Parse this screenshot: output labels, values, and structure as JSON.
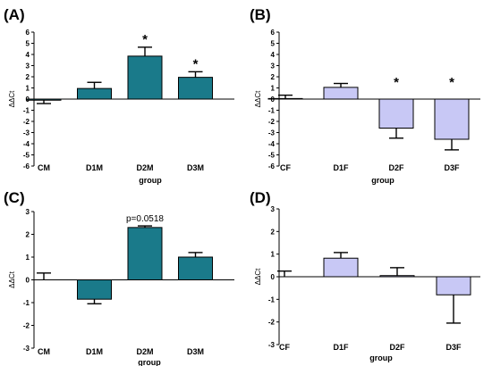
{
  "colors": {
    "male_bar": "#1a7a8a",
    "female_bar": "#c8c8f5",
    "bar_edge": "#000000"
  },
  "chart_data": [
    {
      "id": "A",
      "type": "bar",
      "panel_label": "(A)",
      "ylabel": "ΔΔCt",
      "xlabel": "group",
      "ylim": [
        -6,
        6
      ],
      "yticks": [
        -6,
        -5,
        -4,
        -3,
        -2,
        -1,
        0,
        1,
        2,
        3,
        4,
        5,
        6
      ],
      "categories": [
        "CM",
        "D1M",
        "D2M",
        "D3M"
      ],
      "values": [
        -0.1,
        0.95,
        3.85,
        1.95
      ],
      "errors": [
        0.3,
        0.55,
        0.8,
        0.5
      ],
      "annotations": [
        "",
        "",
        "*",
        "*"
      ],
      "color": "male"
    },
    {
      "id": "B",
      "type": "bar",
      "panel_label": "(B)",
      "ylabel": "ΔΔCt",
      "xlabel": "group",
      "ylim": [
        -6,
        6
      ],
      "yticks": [
        -6,
        -5,
        -4,
        -3,
        -2,
        -1,
        0,
        1,
        2,
        3,
        4,
        5,
        6
      ],
      "categories": [
        "CF",
        "D1F",
        "D2F",
        "D3F"
      ],
      "values": [
        0.05,
        1.05,
        -2.6,
        -3.6
      ],
      "errors": [
        0.3,
        0.35,
        0.9,
        0.95
      ],
      "annotations": [
        "",
        "",
        "*",
        "*"
      ],
      "color": "female"
    },
    {
      "id": "C",
      "type": "bar",
      "panel_label": "(C)",
      "ylabel": "ΔΔCt",
      "xlabel": "group",
      "ylim": [
        -3,
        3
      ],
      "yticks": [
        -3,
        -2,
        -1,
        0,
        1,
        2,
        3
      ],
      "categories": [
        "CM",
        "D1M",
        "D2M",
        "D3M"
      ],
      "values": [
        0.0,
        -0.85,
        2.3,
        1.0
      ],
      "errors": [
        0.3,
        0.2,
        0.07,
        0.2
      ],
      "annotations": [
        "",
        "",
        "p=0.0518",
        ""
      ],
      "color": "male"
    },
    {
      "id": "D",
      "type": "bar",
      "panel_label": "(D)",
      "ylabel": "ΔΔCt",
      "xlabel": "group",
      "ylim": [
        -3,
        3
      ],
      "yticks": [
        -3,
        -2,
        -1,
        0,
        1,
        2,
        3
      ],
      "categories": [
        "CF",
        "D1F",
        "D2F",
        "D3F"
      ],
      "values": [
        0.0,
        0.82,
        0.05,
        -0.8
      ],
      "errors": [
        0.25,
        0.25,
        0.35,
        1.25
      ],
      "annotations": [
        "",
        "",
        "",
        ""
      ],
      "color": "female"
    }
  ]
}
